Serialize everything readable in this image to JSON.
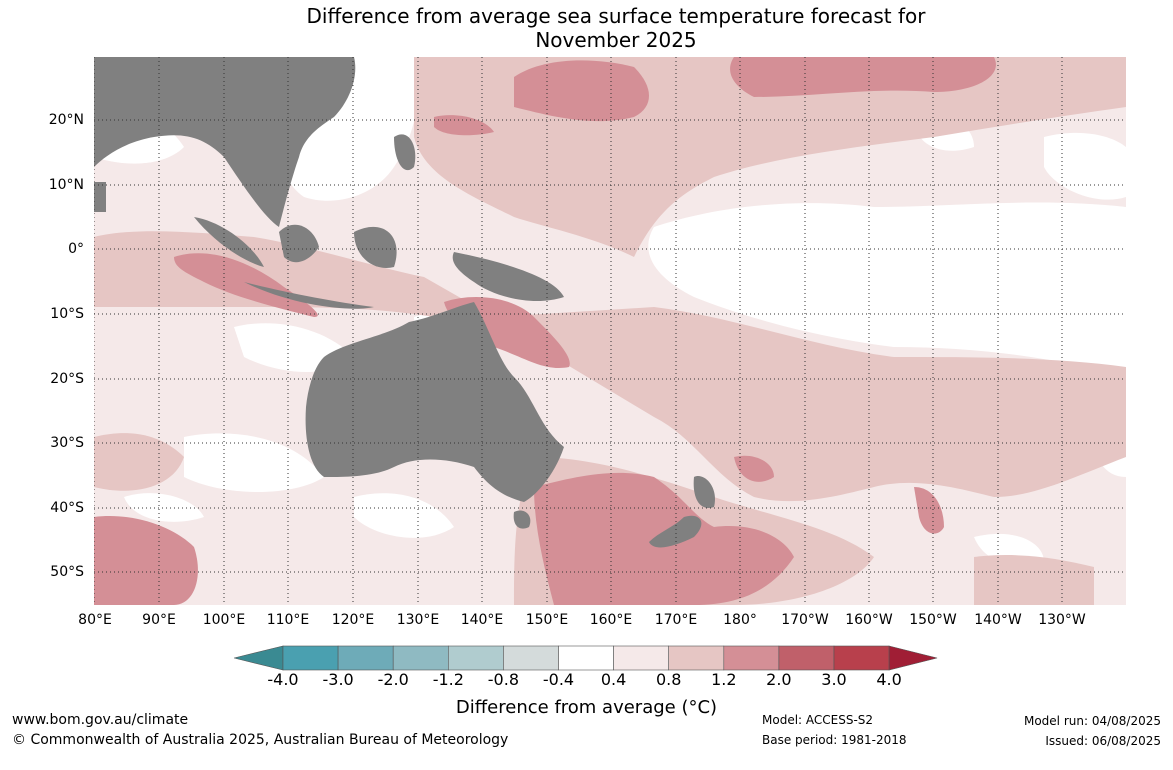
{
  "title_line1": "Difference from average sea surface temperature forecast for",
  "title_line2": "November 2025",
  "map": {
    "lat_labels": [
      "20°N",
      "10°N",
      "0°",
      "10°S",
      "20°S",
      "30°S",
      "40°S",
      "50°S"
    ],
    "lon_labels": [
      "80°E",
      "90°E",
      "100°E",
      "110°E",
      "120°E",
      "130°E",
      "140°E",
      "150°E",
      "160°E",
      "170°E",
      "180°",
      "170°W",
      "160°W",
      "150°W",
      "140°W",
      "130°W"
    ],
    "land_color": "#808080",
    "grid": "dotted"
  },
  "colorbar": {
    "title": "Difference from average (°C)",
    "tick_labels": [
      "-4.0",
      "-3.0",
      "-2.0",
      "-1.2",
      "-0.8",
      "-0.4",
      "0.4",
      "0.8",
      "1.2",
      "2.0",
      "3.0",
      "4.0"
    ],
    "colors": [
      "#3a8a92",
      "#4aa0b0",
      "#6eabb8",
      "#8fbac2",
      "#b0cccf",
      "#d4dbdb",
      "#ffffff",
      "#f5e9e9",
      "#e6c6c4",
      "#d48f96",
      "#c0606a",
      "#b8404c",
      "#a01e35"
    ]
  },
  "footer": {
    "url": "www.bom.gov.au/climate",
    "copyright": "© Commonwealth of Australia 2025, Australian Bureau of Meteorology",
    "model": "Model: ACCESS-S2",
    "base_period": "Base period: 1981-2018",
    "model_run": "Model run: 04/08/2025",
    "issued": "Issued: 06/08/2025"
  }
}
